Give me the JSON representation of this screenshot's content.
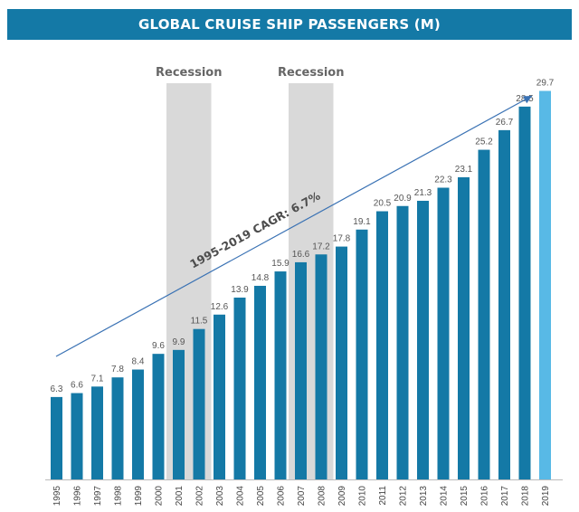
{
  "title": "GLOBAL CRUISE SHIP PASSENGERS (M)",
  "colors": {
    "bar": "#1479a6",
    "highlight": "#58b9e6",
    "recession": "#d9d9d9",
    "trend": "#3a72b4"
  },
  "chart_data": {
    "type": "bar",
    "title": "GLOBAL CRUISE SHIP PASSENGERS (M)",
    "categories": [
      "1995",
      "1996",
      "1997",
      "1998",
      "1999",
      "2000",
      "2001",
      "2002",
      "2003",
      "2004",
      "2005",
      "2006",
      "2007",
      "2008",
      "2009",
      "2010",
      "2011",
      "2012",
      "2013",
      "2014",
      "2015",
      "2016",
      "2017",
      "2018",
      "2019"
    ],
    "values": [
      6.3,
      6.6,
      7.1,
      7.8,
      8.4,
      9.6,
      9.9,
      11.5,
      12.6,
      13.9,
      14.8,
      15.9,
      16.6,
      17.2,
      17.8,
      19.1,
      20.5,
      20.9,
      21.3,
      22.3,
      23.1,
      25.2,
      26.7,
      28.5,
      29.7
    ],
    "value_labels": [
      "6.3",
      "6.6",
      "7.1",
      "7.8",
      "8.4",
      "9.6",
      "9.9",
      "11.5",
      "12.6",
      "13.9",
      "14.8",
      "15.9",
      "16.6",
      "17.2",
      "17.8",
      "19.1",
      "20.5",
      "20.9",
      "21.3",
      "22.3",
      "23.1",
      "25.2",
      "26.7",
      "28.5",
      "29.7"
    ],
    "highlighted_category": "2019",
    "recessions": [
      {
        "label": "Recession",
        "categories": [
          "2001",
          "2002"
        ]
      },
      {
        "label": "Recession",
        "categories": [
          "2007",
          "2008"
        ]
      }
    ],
    "trend_annotation": "1995-2019 CAGR: 6.7%",
    "ylim": [
      0,
      32.5
    ],
    "grid": false
  }
}
